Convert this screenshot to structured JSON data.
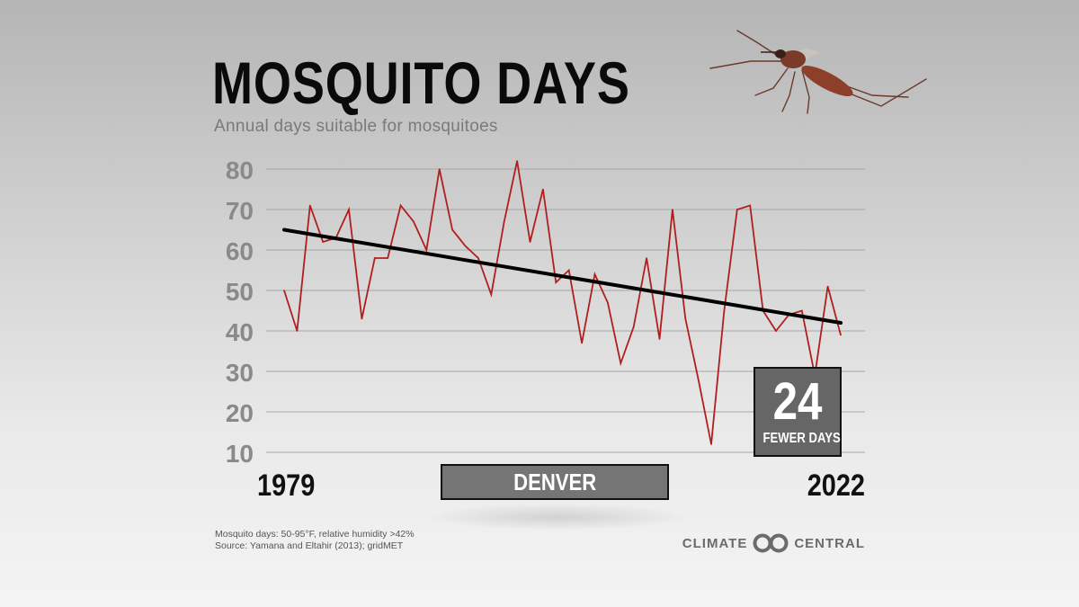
{
  "header": {
    "title": "MOSQUITO DAYS",
    "subtitle": "Annual days suitable for mosquitoes"
  },
  "location": "DENVER",
  "callout": {
    "value": "24",
    "label": "FEWER DAYS"
  },
  "footnotes": {
    "line1": "Mosquito days: 50-95°F, relative humidity >42%",
    "line2": "Source: Yamana and Eltahir (2013); gridMET"
  },
  "brand": {
    "left": "CLIMATE",
    "right": "CENTRAL"
  },
  "icons": {
    "mosquito": "mosquito-illustration",
    "logo": "climate-central-logo-icon"
  },
  "colors": {
    "series": "#b01f1f",
    "trend": "#000000",
    "grid": "#a6a6a6",
    "ticks": "#8a8a8a"
  },
  "chart_data": {
    "type": "line",
    "x_start_label": "1979",
    "x_end_label": "2022",
    "x": [
      1979,
      1980,
      1981,
      1982,
      1983,
      1984,
      1985,
      1986,
      1987,
      1988,
      1989,
      1990,
      1991,
      1992,
      1993,
      1994,
      1995,
      1996,
      1997,
      1998,
      1999,
      2000,
      2001,
      2002,
      2003,
      2004,
      2005,
      2006,
      2007,
      2008,
      2009,
      2010,
      2011,
      2012,
      2013,
      2014,
      2015,
      2016,
      2017,
      2018,
      2019,
      2020,
      2021,
      2022
    ],
    "series": [
      {
        "values": [
          50,
          40,
          71,
          62,
          63,
          70,
          43,
          58,
          58,
          71,
          67,
          60,
          80,
          65,
          61,
          58,
          49,
          67,
          82,
          62,
          75,
          52,
          55,
          37,
          54,
          47,
          32,
          41,
          58,
          38,
          70,
          43,
          28,
          12,
          45,
          70,
          71,
          45,
          40,
          44,
          45,
          29,
          51,
          39
        ]
      }
    ],
    "trend": {
      "from": [
        1979,
        65
      ],
      "to": [
        2022,
        42
      ]
    },
    "yticks": [
      10,
      20,
      30,
      40,
      50,
      60,
      70,
      80
    ],
    "ylim": [
      10,
      80
    ],
    "grid": true,
    "xlabel": "",
    "ylabel": ""
  }
}
